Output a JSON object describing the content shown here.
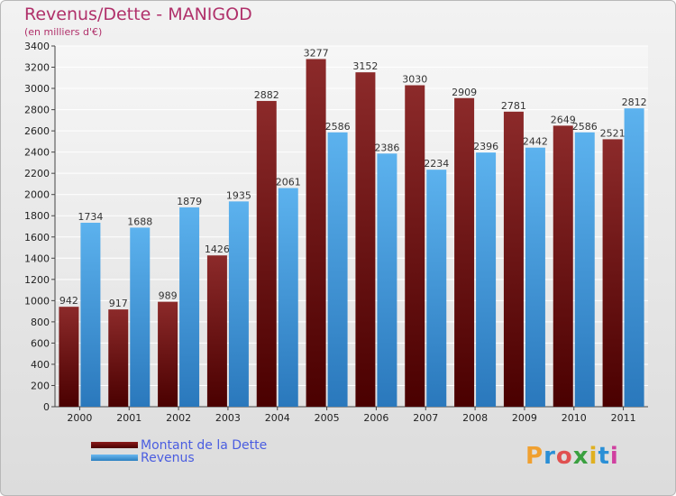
{
  "chart_data": {
    "type": "bar",
    "title": "Revenus/Dette - MANIGOD",
    "subtitle": "(en milliers d'€)",
    "categories": [
      "2000",
      "2001",
      "2002",
      "2003",
      "2004",
      "2005",
      "2006",
      "2007",
      "2008",
      "2009",
      "2010",
      "2011"
    ],
    "series": [
      {
        "name": "Montant de la Dette",
        "color": "#7a1010",
        "values": [
          942,
          917,
          989,
          1426,
          2882,
          3277,
          3152,
          3030,
          2909,
          2781,
          2649,
          2521
        ],
        "labels": [
          "942",
          "917",
          "989",
          "1426",
          "2882",
          "3277",
          "3152",
          "3030",
          "2909",
          "2781",
          "2649",
          "2521"
        ]
      },
      {
        "name": "Revenus",
        "color": "#4aa3e6",
        "values": [
          1734,
          1688,
          1879,
          1935,
          2061,
          2586,
          2386,
          2234,
          2396,
          2442,
          2586,
          2812
        ],
        "labels": [
          "1734",
          "1688",
          "1879",
          "1935",
          "2061",
          "2586",
          "2386",
          "2234",
          "2396",
          "2442",
          "2586",
          "2812"
        ]
      }
    ],
    "ylim": [
      0,
      3400
    ],
    "yticks": [
      0,
      200,
      400,
      600,
      800,
      1000,
      1200,
      1400,
      1600,
      1800,
      2000,
      2200,
      2400,
      2600,
      2800,
      3000,
      3200,
      3400
    ],
    "grid": true,
    "legend_placement": "bottom-left"
  },
  "legend": {
    "debt_label": "Montant de la Dette",
    "revenue_label": "Revenus"
  },
  "logo": {
    "letters": [
      "P",
      "r",
      "o",
      "x",
      "i",
      "t",
      "i"
    ],
    "colors": [
      "#f0a030",
      "#2a8fd6",
      "#e05050",
      "#3aa040",
      "#e0b020",
      "#2a8fd6",
      "#d040a0"
    ]
  }
}
